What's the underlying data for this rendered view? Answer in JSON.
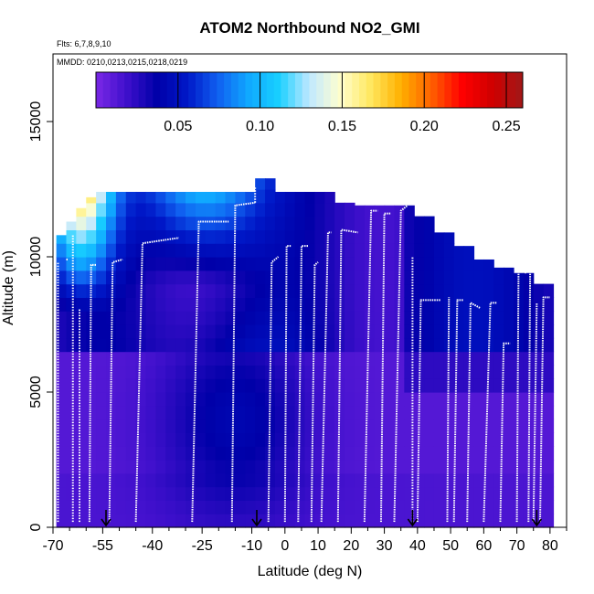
{
  "chart_data": {
    "type": "heatmap",
    "title": "ATOM2 Northbound NO2_GMI",
    "subtitle_flights": "Flts: 6,7,8,9,10",
    "subtitle_dates": "MMDD: 0210,0213,0215,0218,0219",
    "xlabel": "Latitude (deg N)",
    "ylabel": "Altitude (m)",
    "xlim": [
      -70,
      85
    ],
    "ylim": [
      0,
      17500
    ],
    "x_ticks": [
      -70,
      -55,
      -40,
      -25,
      -10,
      0,
      10,
      20,
      30,
      40,
      50,
      60,
      70,
      80
    ],
    "x_ticklabels": [
      "-70",
      "-55",
      "-40",
      "-25",
      "-10",
      "0",
      "10",
      "20",
      "30",
      "40",
      "50",
      "60",
      "70",
      "80"
    ],
    "x_minor_ticks": [
      -65,
      -60,
      -50,
      -45,
      -35,
      -30,
      -20,
      -15,
      -5,
      5,
      15,
      25,
      35,
      45,
      55,
      65,
      75,
      85
    ],
    "y_ticks": [
      0,
      5000,
      10000,
      15000
    ],
    "y_ticklabels": [
      "0",
      "5000",
      "10000",
      "15000"
    ],
    "colorbar": {
      "range": [
        0,
        0.26
      ],
      "ticks": [
        0.05,
        0.1,
        0.15,
        0.2,
        0.25
      ],
      "ticklabels": [
        "0.05",
        "0.10",
        "0.15",
        "0.20",
        "0.25"
      ],
      "colors": [
        "#7b28e6",
        "#3f10cc",
        "#0000a8",
        "#0018c8",
        "#1060f0",
        "#10a8ff",
        "#18d0ff",
        "#c0e8ff",
        "#ffffd0",
        "#ffe860",
        "#ffb000",
        "#ff6000",
        "#ff0000",
        "#d00000",
        "#a01818"
      ]
    },
    "field": {
      "lat_range": [
        -69,
        80
      ],
      "lat_step": 3,
      "alt_step": 500,
      "top_altitude_by_lat": [
        [
          -69,
          10800
        ],
        [
          -66,
          11300
        ],
        [
          -63,
          11800
        ],
        [
          -60,
          12200
        ],
        [
          -57,
          12400
        ],
        [
          -54,
          12400
        ],
        [
          -48,
          12400
        ],
        [
          -42,
          12400
        ],
        [
          -36,
          12400
        ],
        [
          -30,
          12400
        ],
        [
          -24,
          12400
        ],
        [
          -18,
          12400
        ],
        [
          -12,
          12400
        ],
        [
          -8,
          12900
        ],
        [
          -4,
          12400
        ],
        [
          0,
          12400
        ],
        [
          6,
          12400
        ],
        [
          12,
          12400
        ],
        [
          16,
          12000
        ],
        [
          20,
          11900
        ],
        [
          26,
          11900
        ],
        [
          32,
          11900
        ],
        [
          38,
          11900
        ],
        [
          40,
          11500
        ],
        [
          46,
          10900
        ],
        [
          52,
          10400
        ],
        [
          58,
          9900
        ],
        [
          64,
          9600
        ],
        [
          70,
          9400
        ],
        [
          76,
          9000
        ],
        [
          80,
          9000
        ]
      ]
    },
    "flight_tracks": [
      {
        "lat": [
          -68.5,
          -68.5
        ],
        "alt": [
          200,
          9800
        ]
      },
      {
        "lat": [
          -66,
          -65.5
        ],
        "alt": [
          9900,
          9900
        ]
      },
      {
        "lat": [
          -64,
          -64
        ],
        "alt": [
          200,
          10800
        ]
      },
      {
        "lat": [
          -62,
          -62
        ],
        "alt": [
          200,
          8100
        ]
      },
      {
        "lat": [
          -59,
          -58.5,
          -57
        ],
        "alt": [
          200,
          9700,
          9700
        ]
      },
      {
        "lat": [
          -53,
          -52,
          -49
        ],
        "alt": [
          200,
          9800,
          9900
        ]
      },
      {
        "lat": [
          -45,
          -43,
          -32
        ],
        "alt": [
          200,
          10500,
          10700
        ]
      },
      {
        "lat": [
          -28,
          -26,
          -17
        ],
        "alt": [
          200,
          11300,
          11300
        ]
      },
      {
        "lat": [
          -16,
          -15,
          -9
        ],
        "alt": [
          200,
          11900,
          12000
        ]
      },
      {
        "lat": [
          -9,
          -9
        ],
        "alt": [
          12000,
          12600
        ]
      },
      {
        "lat": [
          -5,
          -4,
          -2
        ],
        "alt": [
          200,
          9800,
          10000
        ]
      },
      {
        "lat": [
          0,
          0.5,
          2
        ],
        "alt": [
          200,
          10400,
          10400
        ]
      },
      {
        "lat": [
          4,
          5,
          7
        ],
        "alt": [
          200,
          10400,
          10400
        ]
      },
      {
        "lat": [
          8,
          9,
          10
        ],
        "alt": [
          200,
          9700,
          9800
        ]
      },
      {
        "lat": [
          11,
          13,
          14
        ],
        "alt": [
          200,
          10900,
          10900
        ]
      },
      {
        "lat": [
          16,
          17,
          22
        ],
        "alt": [
          200,
          11000,
          10900
        ]
      },
      {
        "lat": [
          24,
          26,
          28
        ],
        "alt": [
          200,
          11700,
          11700
        ]
      },
      {
        "lat": [
          29,
          30,
          32
        ],
        "alt": [
          200,
          11600,
          11600
        ]
      },
      {
        "lat": [
          33,
          35,
          37
        ],
        "alt": [
          200,
          11700,
          11900
        ]
      },
      {
        "lat": [
          38.5,
          38.5
        ],
        "alt": [
          200,
          10000
        ]
      },
      {
        "lat": [
          40,
          41,
          47
        ],
        "alt": [
          200,
          8400,
          8400
        ]
      },
      {
        "lat": [
          49,
          49.5
        ],
        "alt": [
          200,
          8500
        ]
      },
      {
        "lat": [
          51,
          52,
          54
        ],
        "alt": [
          200,
          8400,
          8400
        ]
      },
      {
        "lat": [
          55,
          56,
          59
        ],
        "alt": [
          200,
          8300,
          8100
        ]
      },
      {
        "lat": [
          60,
          62,
          64
        ],
        "alt": [
          200,
          8300,
          8300
        ]
      },
      {
        "lat": [
          65,
          66,
          68
        ],
        "alt": [
          200,
          6800,
          6800
        ]
      },
      {
        "lat": [
          70,
          70.5,
          73
        ],
        "alt": [
          200,
          9500,
          9400
        ]
      },
      {
        "lat": [
          73.5,
          74
        ],
        "alt": [
          200,
          9500
        ]
      },
      {
        "lat": [
          75,
          76
        ],
        "alt": [
          200,
          8300
        ]
      },
      {
        "lat": [
          77,
          78,
          80
        ],
        "alt": [
          200,
          8500,
          8500
        ]
      }
    ],
    "markers": [
      {
        "lat": -54,
        "label": "arrow"
      },
      {
        "lat": -8.5,
        "label": "arrow"
      },
      {
        "lat": 38.5,
        "label": "arrow"
      },
      {
        "lat": 76,
        "label": "arrow"
      }
    ]
  }
}
